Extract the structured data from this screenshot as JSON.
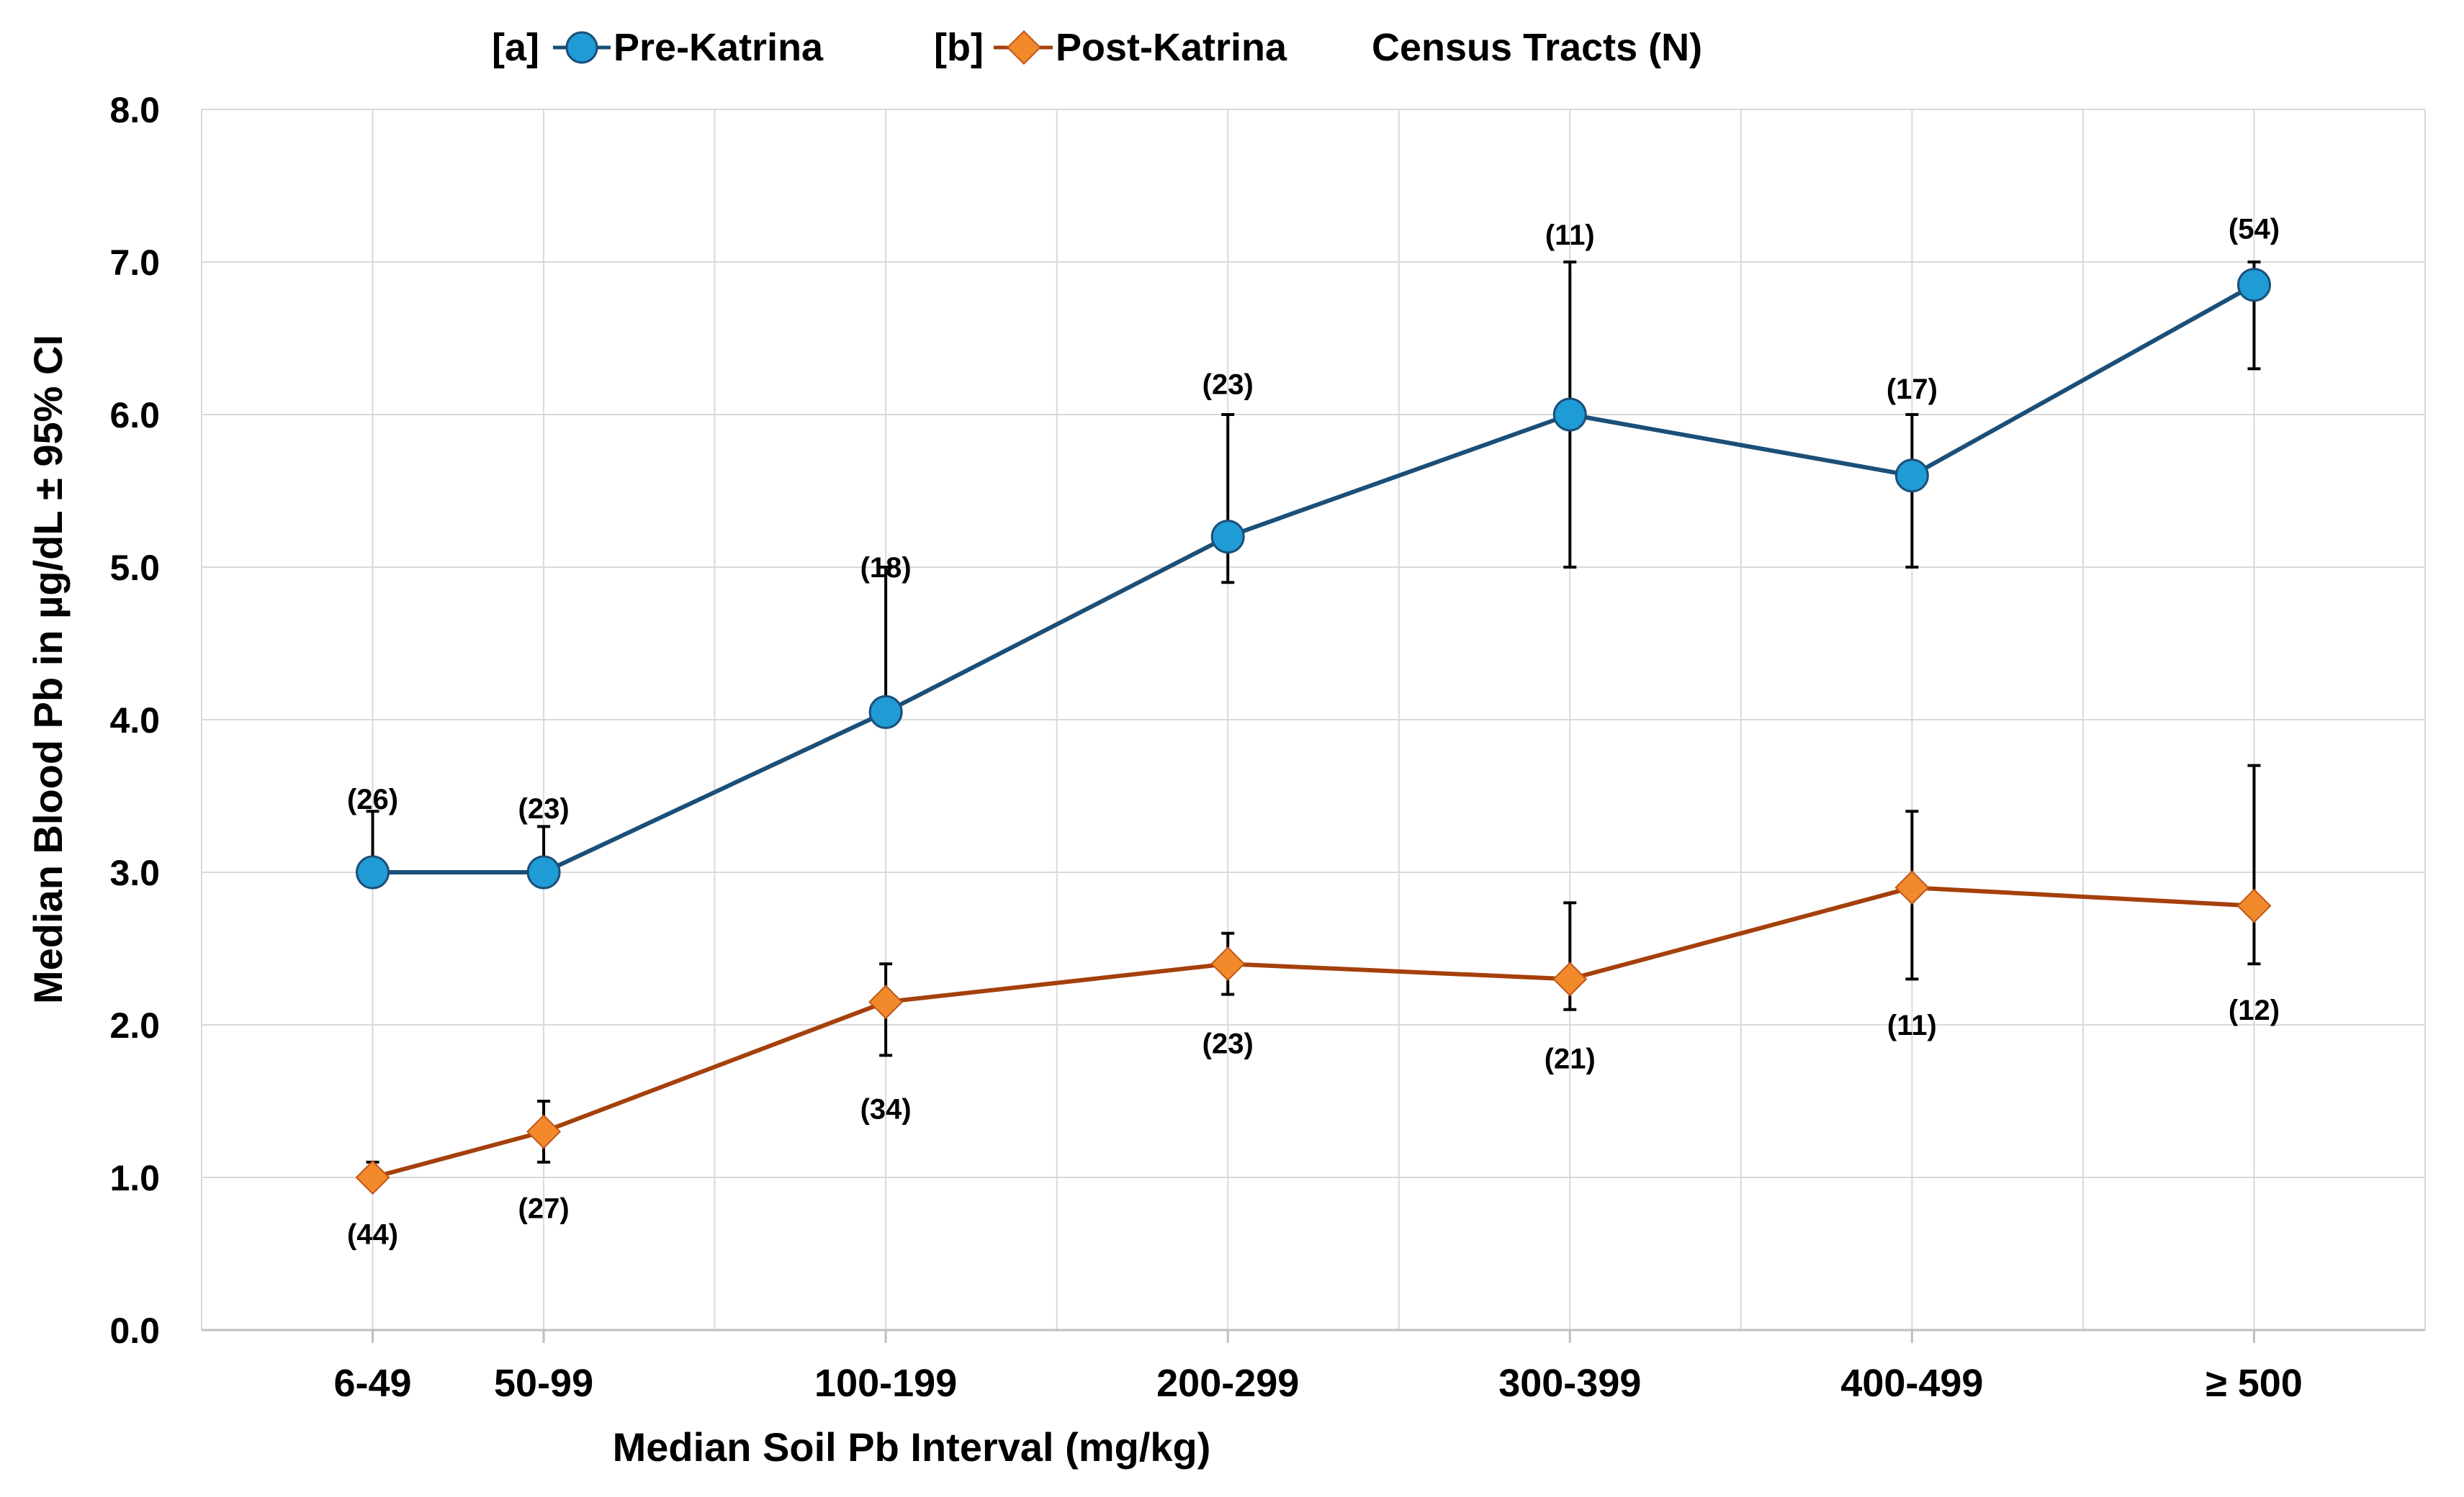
{
  "chart_data": {
    "type": "line",
    "title": "",
    "xlabel": "Median Soil Pb Interval (mg/kg)",
    "ylabel": "Median Blood Pb in µg/dL ± 95% CI",
    "ylim": [
      0,
      8
    ],
    "yticks": [
      "0.0",
      "1.0",
      "2.0",
      "3.0",
      "4.0",
      "5.0",
      "6.0",
      "7.0",
      "8.0"
    ],
    "x": [
      1,
      2,
      4,
      6,
      8,
      10,
      12
    ],
    "xlim": [
      0,
      13
    ],
    "categories": [
      "6-49",
      "50-99",
      "100-199",
      "200-299",
      "300-399",
      "400-499",
      "≥ 500"
    ],
    "grid": true,
    "legend_position": "top",
    "legend": {
      "pre_tag": "[a]",
      "post_tag": "[b]",
      "census_label": "Census Tracts (N)"
    },
    "series": [
      {
        "name": "Pre-Katrina",
        "marker": "circle",
        "color": "#1f9bd6",
        "line_color": "#1b4f78",
        "values": [
          3.0,
          3.0,
          4.05,
          5.2,
          6.0,
          5.6,
          6.85
        ],
        "ci_upper": [
          3.4,
          3.3,
          5.0,
          6.0,
          7.0,
          6.0,
          7.0
        ],
        "ci_lower": [
          3.0,
          3.0,
          4.05,
          4.9,
          5.0,
          5.0,
          6.3
        ],
        "n_labels": [
          "(26)",
          "(23)",
          "(18)",
          "(23)",
          "(11)",
          "(17)",
          "(54)"
        ],
        "n_label_values": [
          3.48,
          3.42,
          5.0,
          6.2,
          7.18,
          6.17,
          7.22
        ]
      },
      {
        "name": "Post-Katrina",
        "marker": "diamond",
        "color": "#f28a2c",
        "line_color": "#a5400c",
        "values": [
          1.0,
          1.3,
          2.15,
          2.4,
          2.3,
          2.9,
          2.78
        ],
        "ci_upper": [
          1.1,
          1.5,
          2.4,
          2.6,
          2.8,
          3.4,
          3.7
        ],
        "ci_lower": [
          1.0,
          1.1,
          1.8,
          2.2,
          2.1,
          2.3,
          2.4
        ],
        "n_labels": [
          "(44)",
          "(27)",
          "(34)",
          "(23)",
          "(21)",
          "(11)",
          "(12)"
        ],
        "n_label_values": [
          0.63,
          0.8,
          1.45,
          1.88,
          1.78,
          2.0,
          2.1
        ]
      }
    ]
  }
}
